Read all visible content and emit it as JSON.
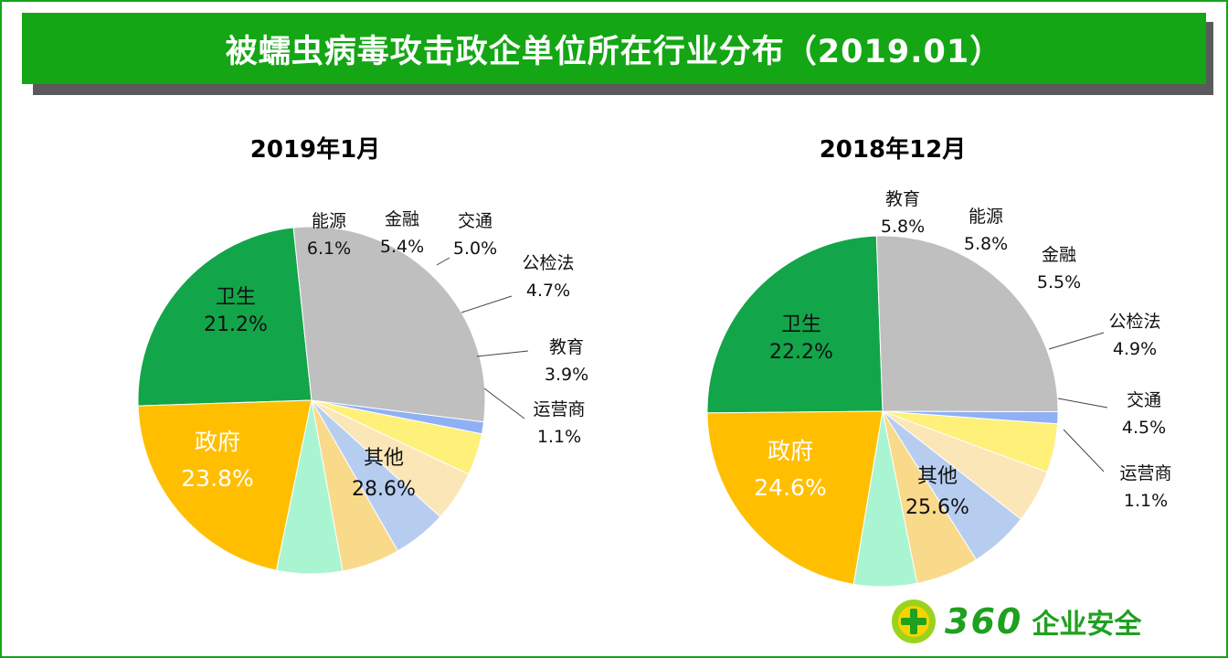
{
  "title": "被蠕虫病毒攻击政企单位所在行业分布（2019.01）",
  "logo": {
    "number": "360",
    "text": "企业安全"
  },
  "colors": {
    "frame": "#16a516",
    "title_bg": "#14a614",
    "政府": "#13a54a",
    "卫生": "#ffbf00",
    "能源": "#a9f5d2",
    "金融": "#f9d98a",
    "交通": "#b7cdf0",
    "公检法": "#fbe6b8",
    "教育": "#fff07a",
    "运营商": "#8fb0f5",
    "其他": "#bfbfbf"
  },
  "chart_data": [
    {
      "type": "pie",
      "title": "2019年1月",
      "start_angle_deg": 264,
      "slices": [
        {
          "label": "政府",
          "value": 23.8,
          "value_label": "23.8%",
          "color": "#13a54a"
        },
        {
          "label": "卫生",
          "value": 21.2,
          "value_label": "21.2%",
          "color": "#ffbf00"
        },
        {
          "label": "能源",
          "value": 6.1,
          "value_label": "6.1%",
          "color": "#a9f5d2"
        },
        {
          "label": "金融",
          "value": 5.4,
          "value_label": "5.4%",
          "color": "#f9d98a"
        },
        {
          "label": "交通",
          "value": 5.0,
          "value_label": "5.0%",
          "color": "#b7cdf0"
        },
        {
          "label": "公检法",
          "value": 4.7,
          "value_label": "4.7%",
          "color": "#fbe6b8"
        },
        {
          "label": "教育",
          "value": 3.9,
          "value_label": "3.9%",
          "color": "#fff07a"
        },
        {
          "label": "运营商",
          "value": 1.1,
          "value_label": "1.1%",
          "color": "#8fb0f5"
        },
        {
          "label": "其他",
          "value": 28.6,
          "value_label": "28.6%",
          "color": "#bfbfbf"
        }
      ]
    },
    {
      "type": "pie",
      "title": "2018年12月",
      "start_angle_deg": 268,
      "slices": [
        {
          "label": "政府",
          "value": 24.6,
          "value_label": "24.6%",
          "color": "#13a54a"
        },
        {
          "label": "卫生",
          "value": 22.2,
          "value_label": "22.2%",
          "color": "#ffbf00"
        },
        {
          "label": "教育",
          "value": 5.8,
          "value_label": "5.8%",
          "color": "#a9f5d2"
        },
        {
          "label": "能源",
          "value": 5.8,
          "value_label": "5.8%",
          "color": "#f9d98a"
        },
        {
          "label": "金融",
          "value": 5.5,
          "value_label": "5.5%",
          "color": "#b7cdf0"
        },
        {
          "label": "公检法",
          "value": 4.9,
          "value_label": "4.9%",
          "color": "#fbe6b8"
        },
        {
          "label": "交通",
          "value": 4.5,
          "value_label": "4.5%",
          "color": "#fff07a"
        },
        {
          "label": "运营商",
          "value": 1.1,
          "value_label": "1.1%",
          "color": "#8fb0f5"
        },
        {
          "label": "其他",
          "value": 25.6,
          "value_label": "25.6%",
          "color": "#bfbfbf"
        }
      ]
    }
  ]
}
